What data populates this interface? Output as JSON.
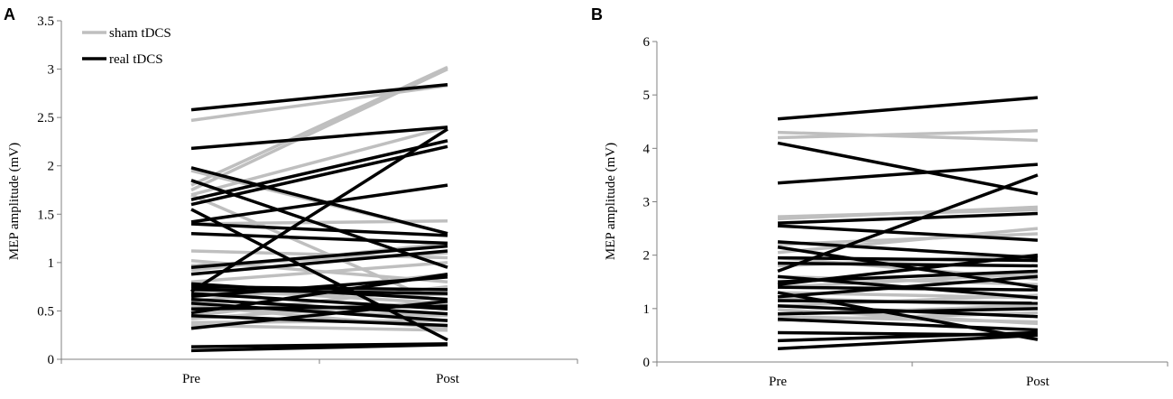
{
  "chart_data": [
    {
      "panel_label": "A",
      "type": "line",
      "ylabel": "MEP amplitude (mV)",
      "categories": [
        "Pre",
        "Post"
      ],
      "ylim": [
        0,
        3.5
      ],
      "yticks": [
        "0",
        "0.5",
        "1",
        "1.5",
        "2",
        "2.5",
        "3",
        "3.5"
      ],
      "grid": false,
      "legend": {
        "position": "top-left",
        "entries": [
          {
            "label": "sham tDCS",
            "color": "#bfbfbf"
          },
          {
            "label": "real tDCS",
            "color": "#000000"
          }
        ]
      },
      "series": [
        {
          "group": "sham",
          "values": [
            2.47,
            2.83
          ]
        },
        {
          "group": "sham",
          "values": [
            1.8,
            3.02
          ]
        },
        {
          "group": "sham",
          "values": [
            1.7,
            2.4
          ]
        },
        {
          "group": "sham",
          "values": [
            1.75,
            3.0
          ]
        },
        {
          "group": "sham",
          "values": [
            1.95,
            1.3
          ]
        },
        {
          "group": "sham",
          "values": [
            1.7,
            0.55
          ]
        },
        {
          "group": "sham",
          "values": [
            1.4,
            1.43
          ]
        },
        {
          "group": "sham",
          "values": [
            1.12,
            1.05
          ]
        },
        {
          "group": "sham",
          "values": [
            1.02,
            0.8
          ]
        },
        {
          "group": "sham",
          "values": [
            0.97,
            1.1
          ]
        },
        {
          "group": "sham",
          "values": [
            0.92,
            1.2
          ]
        },
        {
          "group": "sham",
          "values": [
            0.8,
            1.0
          ]
        },
        {
          "group": "sham",
          "values": [
            0.73,
            0.58
          ]
        },
        {
          "group": "sham",
          "values": [
            0.68,
            0.67
          ]
        },
        {
          "group": "sham",
          "values": [
            0.6,
            0.88
          ]
        },
        {
          "group": "sham",
          "values": [
            0.55,
            0.32
          ]
        },
        {
          "group": "sham",
          "values": [
            0.52,
            0.45
          ]
        },
        {
          "group": "sham",
          "values": [
            0.45,
            0.75
          ]
        },
        {
          "group": "sham",
          "values": [
            0.42,
            0.6
          ]
        },
        {
          "group": "sham",
          "values": [
            0.38,
            0.4
          ]
        },
        {
          "group": "sham",
          "values": [
            0.35,
            0.3
          ]
        },
        {
          "group": "real",
          "values": [
            2.58,
            2.84
          ]
        },
        {
          "group": "real",
          "values": [
            2.18,
            2.4
          ]
        },
        {
          "group": "real",
          "values": [
            1.98,
            1.3
          ]
        },
        {
          "group": "real",
          "values": [
            1.85,
            0.95
          ]
        },
        {
          "group": "real",
          "values": [
            1.65,
            2.26
          ]
        },
        {
          "group": "real",
          "values": [
            1.6,
            2.2
          ]
        },
        {
          "group": "real",
          "values": [
            1.55,
            0.2
          ]
        },
        {
          "group": "real",
          "values": [
            1.42,
            1.8
          ]
        },
        {
          "group": "real",
          "values": [
            1.4,
            1.28
          ]
        },
        {
          "group": "real",
          "values": [
            1.3,
            1.2
          ]
        },
        {
          "group": "real",
          "values": [
            0.95,
            1.17
          ]
        },
        {
          "group": "real",
          "values": [
            0.88,
            1.12
          ]
        },
        {
          "group": "real",
          "values": [
            0.78,
            0.62
          ]
        },
        {
          "group": "real",
          "values": [
            0.75,
            0.72
          ]
        },
        {
          "group": "real",
          "values": [
            0.72,
            0.68
          ]
        },
        {
          "group": "real",
          "values": [
            0.7,
            2.38
          ]
        },
        {
          "group": "real",
          "values": [
            0.68,
            0.52
          ]
        },
        {
          "group": "real",
          "values": [
            0.65,
            0.85
          ]
        },
        {
          "group": "real",
          "values": [
            0.62,
            0.47
          ]
        },
        {
          "group": "real",
          "values": [
            0.58,
            0.4
          ]
        },
        {
          "group": "real",
          "values": [
            0.52,
            0.55
          ]
        },
        {
          "group": "real",
          "values": [
            0.48,
            0.88
          ]
        },
        {
          "group": "real",
          "values": [
            0.45,
            0.35
          ]
        },
        {
          "group": "real",
          "values": [
            0.32,
            0.6
          ]
        },
        {
          "group": "real",
          "values": [
            0.13,
            0.16
          ]
        },
        {
          "group": "real",
          "values": [
            0.09,
            0.15
          ]
        }
      ]
    },
    {
      "panel_label": "B",
      "type": "line",
      "ylabel": "MEP amplitude (mV)",
      "categories": [
        "Pre",
        "Post"
      ],
      "ylim": [
        0,
        6
      ],
      "yticks": [
        "0",
        "1",
        "2",
        "3",
        "4",
        "5",
        "6"
      ],
      "grid": false,
      "series": [
        {
          "group": "sham",
          "values": [
            4.3,
            4.15
          ]
        },
        {
          "group": "sham",
          "values": [
            4.2,
            4.33
          ]
        },
        {
          "group": "sham",
          "values": [
            2.72,
            2.85
          ]
        },
        {
          "group": "sham",
          "values": [
            2.68,
            2.9
          ]
        },
        {
          "group": "sham",
          "values": [
            2.2,
            2.4
          ]
        },
        {
          "group": "sham",
          "values": [
            2.05,
            2.5
          ]
        },
        {
          "group": "sham",
          "values": [
            1.95,
            1.55
          ]
        },
        {
          "group": "sham",
          "values": [
            1.8,
            2.0
          ]
        },
        {
          "group": "sham",
          "values": [
            1.6,
            1.45
          ]
        },
        {
          "group": "sham",
          "values": [
            1.4,
            1.65
          ]
        },
        {
          "group": "sham",
          "values": [
            1.3,
            1.2
          ]
        },
        {
          "group": "sham",
          "values": [
            1.2,
            1.05
          ]
        },
        {
          "group": "sham",
          "values": [
            1.05,
            1.25
          ]
        },
        {
          "group": "sham",
          "values": [
            0.98,
            0.72
          ]
        },
        {
          "group": "sham",
          "values": [
            0.9,
            1.05
          ]
        },
        {
          "group": "sham",
          "values": [
            0.85,
            0.75
          ]
        },
        {
          "group": "sham",
          "values": [
            0.78,
            0.92
          ]
        },
        {
          "group": "real",
          "values": [
            4.55,
            4.95
          ]
        },
        {
          "group": "real",
          "values": [
            4.1,
            3.15
          ]
        },
        {
          "group": "real",
          "values": [
            3.35,
            3.7
          ]
        },
        {
          "group": "real",
          "values": [
            2.6,
            2.78
          ]
        },
        {
          "group": "real",
          "values": [
            2.55,
            2.28
          ]
        },
        {
          "group": "real",
          "values": [
            2.25,
            1.95
          ]
        },
        {
          "group": "real",
          "values": [
            2.15,
            1.4
          ]
        },
        {
          "group": "real",
          "values": [
            1.95,
            1.9
          ]
        },
        {
          "group": "real",
          "values": [
            1.85,
            1.8
          ]
        },
        {
          "group": "real",
          "values": [
            1.7,
            3.5
          ]
        },
        {
          "group": "real",
          "values": [
            1.6,
            1.2
          ]
        },
        {
          "group": "real",
          "values": [
            1.5,
            1.7
          ]
        },
        {
          "group": "real",
          "values": [
            1.45,
            2.0
          ]
        },
        {
          "group": "real",
          "values": [
            1.4,
            1.35
          ]
        },
        {
          "group": "real",
          "values": [
            1.3,
            0.42
          ]
        },
        {
          "group": "real",
          "values": [
            1.22,
            1.6
          ]
        },
        {
          "group": "real",
          "values": [
            1.15,
            1.1
          ]
        },
        {
          "group": "real",
          "values": [
            1.05,
            0.85
          ]
        },
        {
          "group": "real",
          "values": [
            0.9,
            1.0
          ]
        },
        {
          "group": "real",
          "values": [
            0.8,
            0.6
          ]
        },
        {
          "group": "real",
          "values": [
            0.55,
            0.5
          ]
        },
        {
          "group": "real",
          "values": [
            0.4,
            0.55
          ]
        },
        {
          "group": "real",
          "values": [
            0.25,
            0.5
          ]
        }
      ]
    }
  ]
}
